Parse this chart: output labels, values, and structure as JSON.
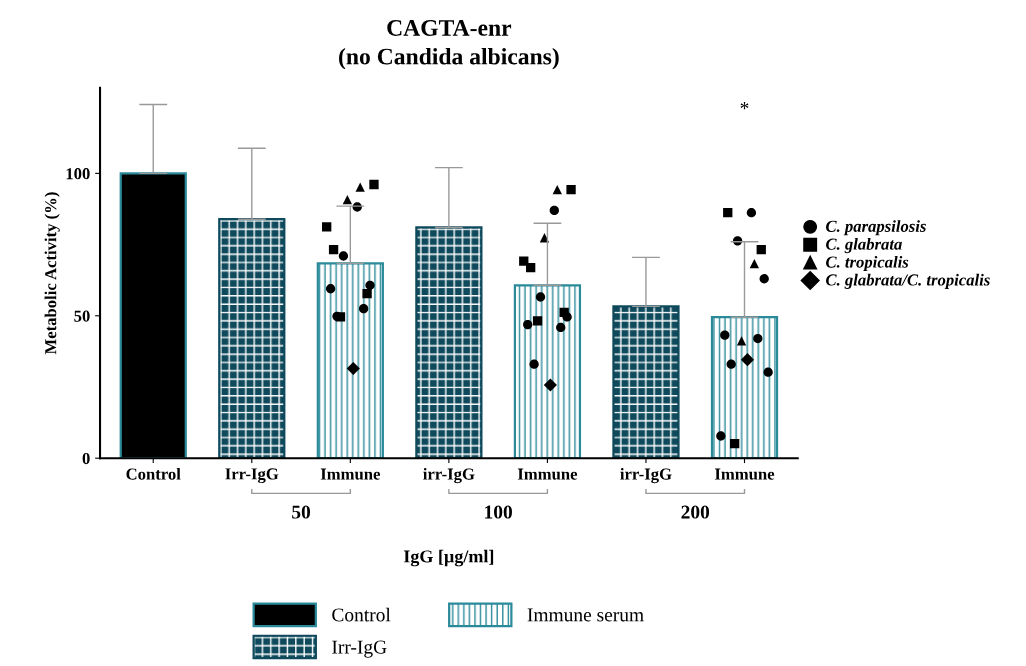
{
  "chart_data": {
    "type": "bar",
    "title": "CAGTA-enr",
    "subtitle": "(no Candida albicans)",
    "xlabel": "IgG [µg/ml]",
    "ylabel": "Metabolic Activity (%)",
    "categories": [
      "Control",
      "Irr-IgG",
      "Immune",
      "irr-IgG",
      "Immune",
      "irr-IgG",
      "Immune"
    ],
    "ylim": [
      0,
      130
    ],
    "yticks": [
      0,
      50,
      100
    ],
    "grid": false,
    "legend": "bottom",
    "series": [
      {
        "name": "Control",
        "color": "#000000",
        "values": [
          100,
          null,
          null,
          null,
          null,
          null,
          null
        ],
        "errors": [
          24.2,
          null,
          null,
          null,
          null,
          null,
          null
        ]
      },
      {
        "name": "Irr-IgG",
        "color": "#0e4a5c",
        "values": [
          null,
          83.9,
          null,
          81,
          null,
          53.3,
          null
        ],
        "errors": [
          null,
          24.9,
          null,
          21,
          null,
          17.2,
          null
        ]
      },
      {
        "name": "Immune serum",
        "color": "#2a8a9a",
        "values": [
          null,
          null,
          68.4,
          null,
          60.7,
          null,
          49.5
        ],
        "errors": [
          null,
          null,
          20.1,
          null,
          21.8,
          null,
          26.5
        ]
      },
      {
        "type": "scatter",
        "name": "C. parapsilosis",
        "color": "#000000",
        "marker": "circle",
        "values": [
          null,
          null,
          88.2,
          null,
          87,
          null,
          86.2
        ]
      },
      {
        "type": "scatter",
        "color": "#000000",
        "marker": "circle",
        "values": [
          null,
          null,
          71,
          null,
          56.6,
          null,
          76.3
        ]
      },
      {
        "type": "scatter",
        "color": "#000000",
        "marker": "circle",
        "values": [
          null,
          null,
          60.7,
          null,
          49.6,
          null,
          63
        ]
      },
      {
        "type": "scatter",
        "color": "#000000",
        "marker": "circle",
        "values": [
          null,
          null,
          59.5,
          null,
          46.9,
          null,
          43.2
        ]
      },
      {
        "type": "scatter",
        "color": "#000000",
        "marker": "circle",
        "values": [
          null,
          null,
          52.5,
          null,
          45.9,
          null,
          42
        ]
      },
      {
        "type": "scatter",
        "color": "#000000",
        "marker": "circle",
        "values": [
          null,
          null,
          49.8,
          null,
          33,
          null,
          33
        ]
      },
      {
        "type": "scatter",
        "color": "#000000",
        "marker": "circle",
        "values": [
          null,
          null,
          null,
          null,
          null,
          null,
          30.2
        ]
      },
      {
        "type": "scatter",
        "color": "#000000",
        "marker": "circle",
        "values": [
          null,
          null,
          null,
          null,
          null,
          null,
          7.8
        ]
      },
      {
        "type": "scatter",
        "name": "C. glabrata",
        "color": "#000000",
        "marker": "square",
        "values": [
          null,
          null,
          96.1,
          null,
          94.3,
          null,
          86.2
        ]
      },
      {
        "type": "scatter",
        "color": "#000000",
        "marker": "square",
        "values": [
          null,
          null,
          81.2,
          null,
          69.2,
          null,
          73.2
        ]
      },
      {
        "type": "scatter",
        "color": "#000000",
        "marker": "square",
        "values": [
          null,
          null,
          73.2,
          null,
          66.9,
          null,
          5.1
        ]
      },
      {
        "type": "scatter",
        "color": "#000000",
        "marker": "square",
        "values": [
          null,
          null,
          57.8,
          null,
          51.2,
          null,
          null
        ]
      },
      {
        "type": "scatter",
        "color": "#000000",
        "marker": "square",
        "values": [
          null,
          null,
          49.6,
          null,
          48.2,
          null,
          null
        ]
      },
      {
        "type": "scatter",
        "name": "C. tropicalis",
        "color": "#000000",
        "marker": "triangle",
        "values": [
          null,
          null,
          95.2,
          null,
          94.3,
          null,
          68.3
        ]
      },
      {
        "type": "scatter",
        "color": "#000000",
        "marker": "triangle",
        "values": [
          null,
          null,
          90.8,
          null,
          77.4,
          null,
          41.2
        ]
      },
      {
        "type": "scatter",
        "name": "C. glabrata/C. tropicalis",
        "color": "#000000",
        "marker": "diamond",
        "values": [
          null,
          null,
          31.5,
          null,
          25.7,
          null,
          34.6
        ]
      }
    ],
    "annotations": [
      "50",
      "100",
      "200",
      "*"
    ]
  }
}
